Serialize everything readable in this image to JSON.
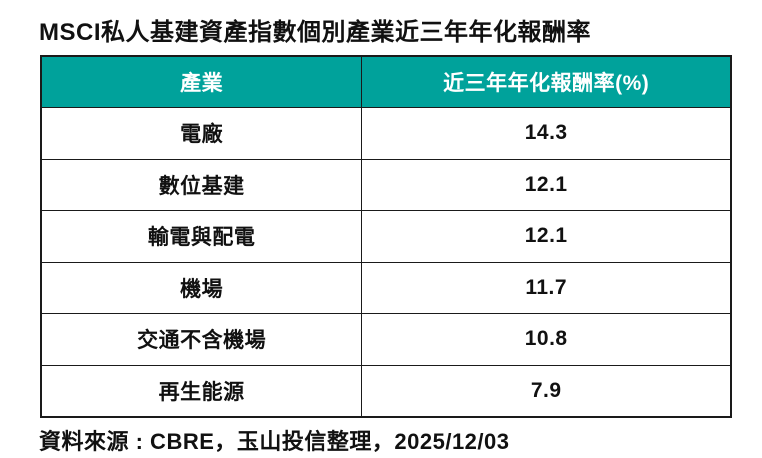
{
  "title": "MSCI私人基建資產指數個別產業近三年年化報酬率",
  "table": {
    "headers": [
      "產業",
      "近三年年化報酬率(%)"
    ],
    "rows": [
      {
        "industry": "電廠",
        "return_pct": "14.3"
      },
      {
        "industry": "數位基建",
        "return_pct": "12.1"
      },
      {
        "industry": "輸電與配電",
        "return_pct": "12.1"
      },
      {
        "industry": "機場",
        "return_pct": "11.7"
      },
      {
        "industry": "交通不含機場",
        "return_pct": "10.8"
      },
      {
        "industry": "再生能源",
        "return_pct": "7.9"
      }
    ]
  },
  "footer": {
    "source": "資料來源 : CBRE，玉山投信整理，2025/12/03"
  },
  "colors": {
    "header_bg": "#00A29B",
    "header_text": "#FFFFFF",
    "border": "#1A1A1A",
    "text": "#111111",
    "background": "#FFFFFF"
  },
  "chart_data": {
    "type": "table",
    "title": "MSCI私人基建資產指數個別產業近三年年化報酬率",
    "columns": [
      "產業",
      "近三年年化報酬率(%)"
    ],
    "categories": [
      "電廠",
      "數位基建",
      "輸電與配電",
      "機場",
      "交通不含機場",
      "再生能源"
    ],
    "values": [
      14.3,
      12.1,
      12.1,
      11.7,
      10.8,
      7.9
    ],
    "source": "資料來源 : CBRE，玉山投信整理，2025/12/03"
  }
}
